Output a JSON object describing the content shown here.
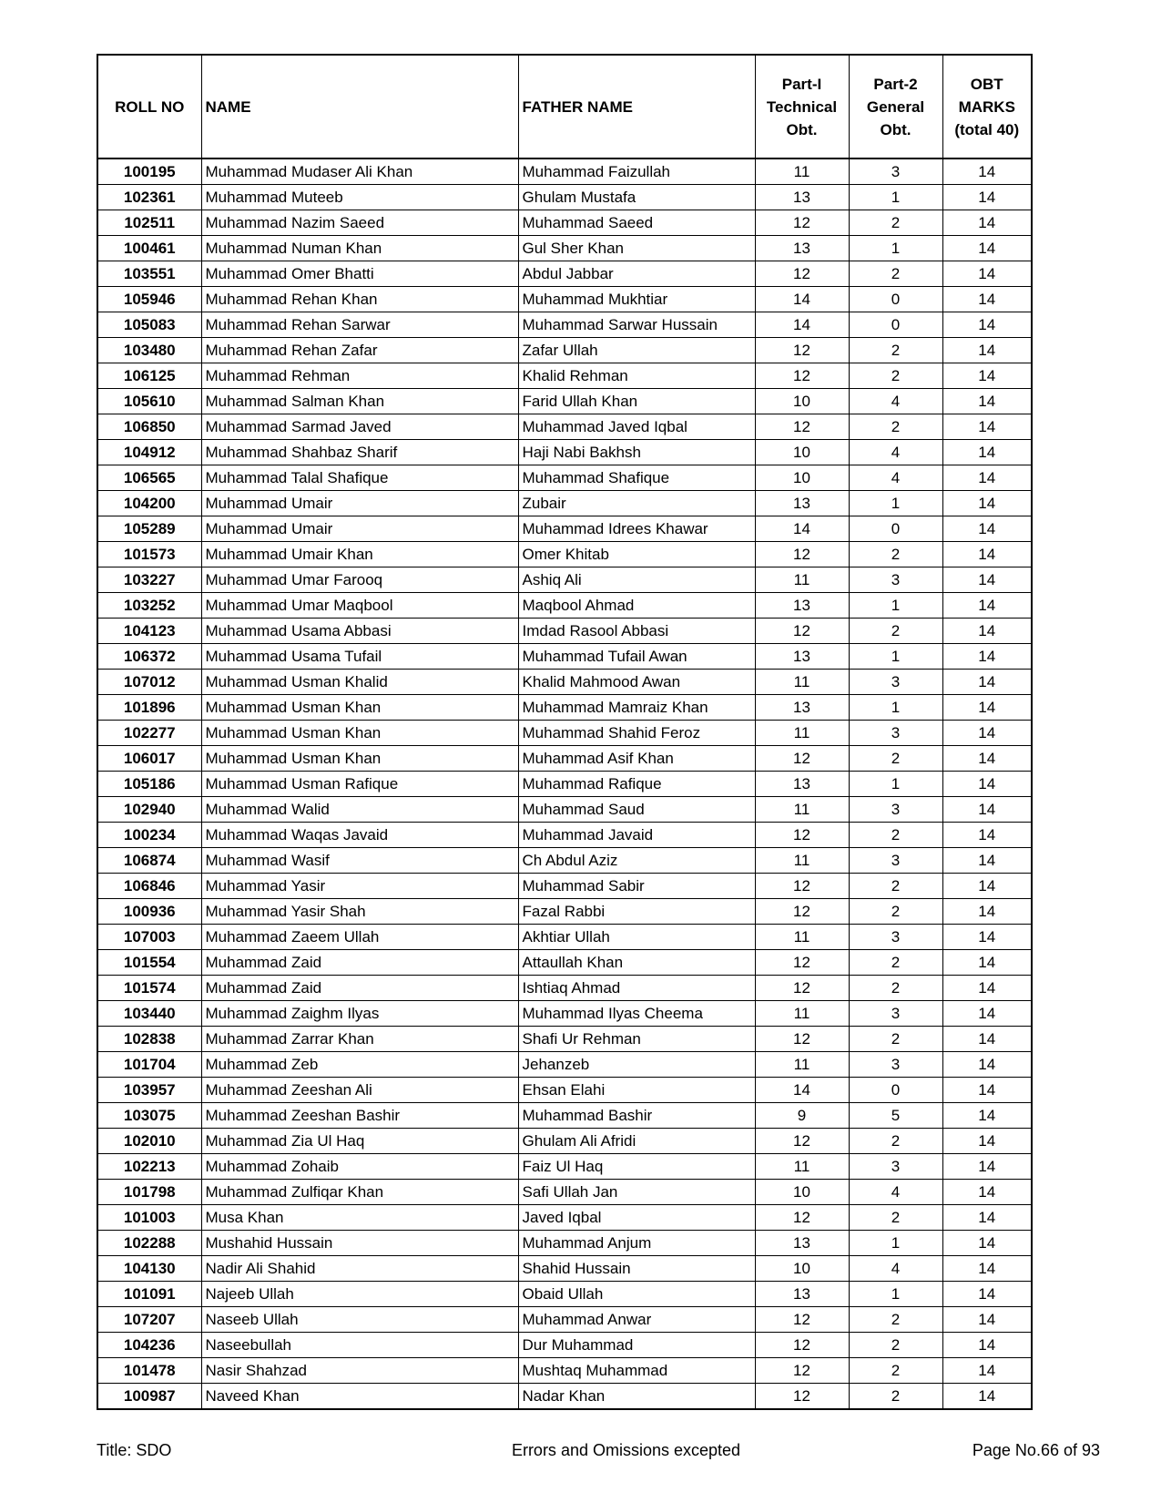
{
  "table": {
    "headers": [
      [
        "ROLL NO"
      ],
      [
        "NAME"
      ],
      [
        "FATHER NAME"
      ],
      [
        "Part-I",
        "Technical",
        "Obt."
      ],
      [
        "Part-2",
        "General",
        "Obt."
      ],
      [
        "OBT",
        "MARKS",
        "(total 40)"
      ]
    ],
    "rows": [
      [
        100195,
        "Muhammad Mudaser Ali Khan",
        "Muhammad Faizullah",
        11,
        3,
        14
      ],
      [
        102361,
        "Muhammad Muteeb",
        "Ghulam Mustafa",
        13,
        1,
        14
      ],
      [
        102511,
        "Muhammad Nazim Saeed",
        "Muhammad Saeed",
        12,
        2,
        14
      ],
      [
        100461,
        "Muhammad Numan Khan",
        "Gul Sher Khan",
        13,
        1,
        14
      ],
      [
        103551,
        "Muhammad Omer Bhatti",
        "Abdul Jabbar",
        12,
        2,
        14
      ],
      [
        105946,
        "Muhammad Rehan Khan",
        "Muhammad Mukhtiar",
        14,
        0,
        14
      ],
      [
        105083,
        "Muhammad Rehan Sarwar",
        "Muhammad Sarwar Hussain",
        14,
        0,
        14
      ],
      [
        103480,
        "Muhammad Rehan Zafar",
        "Zafar Ullah",
        12,
        2,
        14
      ],
      [
        106125,
        "Muhammad Rehman",
        "Khalid Rehman",
        12,
        2,
        14
      ],
      [
        105610,
        "Muhammad Salman Khan",
        "Farid Ullah Khan",
        10,
        4,
        14
      ],
      [
        106850,
        "Muhammad Sarmad Javed",
        "Muhammad Javed Iqbal",
        12,
        2,
        14
      ],
      [
        104912,
        "Muhammad Shahbaz Sharif",
        "Haji Nabi Bakhsh",
        10,
        4,
        14
      ],
      [
        106565,
        "Muhammad Talal Shafique",
        "Muhammad Shafique",
        10,
        4,
        14
      ],
      [
        104200,
        "Muhammad Umair",
        "Zubair",
        13,
        1,
        14
      ],
      [
        105289,
        "Muhammad Umair",
        "Muhammad Idrees Khawar",
        14,
        0,
        14
      ],
      [
        101573,
        "Muhammad Umair Khan",
        "Omer Khitab",
        12,
        2,
        14
      ],
      [
        103227,
        "Muhammad Umar Farooq",
        "Ashiq Ali",
        11,
        3,
        14
      ],
      [
        103252,
        "Muhammad Umar Maqbool",
        "Maqbool Ahmad",
        13,
        1,
        14
      ],
      [
        104123,
        "Muhammad Usama Abbasi",
        "Imdad Rasool Abbasi",
        12,
        2,
        14
      ],
      [
        106372,
        "Muhammad Usama Tufail",
        "Muhammad Tufail Awan",
        13,
        1,
        14
      ],
      [
        107012,
        "Muhammad Usman Khalid",
        "Khalid Mahmood Awan",
        11,
        3,
        14
      ],
      [
        101896,
        "Muhammad Usman Khan",
        "Muhammad Mamraiz Khan",
        13,
        1,
        14
      ],
      [
        102277,
        "Muhammad Usman Khan",
        "Muhammad Shahid Feroz",
        11,
        3,
        14
      ],
      [
        106017,
        "Muhammad Usman Khan",
        "Muhammad Asif Khan",
        12,
        2,
        14
      ],
      [
        105186,
        "Muhammad Usman Rafique",
        "Muhammad Rafique",
        13,
        1,
        14
      ],
      [
        102940,
        "Muhammad Walid",
        "Muhammad Saud",
        11,
        3,
        14
      ],
      [
        100234,
        "Muhammad Waqas Javaid",
        "Muhammad Javaid",
        12,
        2,
        14
      ],
      [
        106874,
        "Muhammad Wasif",
        "Ch Abdul Aziz",
        11,
        3,
        14
      ],
      [
        106846,
        "Muhammad Yasir",
        "Muhammad Sabir",
        12,
        2,
        14
      ],
      [
        100936,
        "Muhammad Yasir Shah",
        "Fazal Rabbi",
        12,
        2,
        14
      ],
      [
        107003,
        "Muhammad Zaeem Ullah",
        "Akhtiar Ullah",
        11,
        3,
        14
      ],
      [
        101554,
        "Muhammad Zaid",
        "Attaullah Khan",
        12,
        2,
        14
      ],
      [
        101574,
        "Muhammad Zaid",
        "Ishtiaq Ahmad",
        12,
        2,
        14
      ],
      [
        103440,
        "Muhammad Zaighm Ilyas",
        "Muhammad Ilyas Cheema",
        11,
        3,
        14
      ],
      [
        102838,
        "Muhammad Zarrar Khan",
        "Shafi Ur Rehman",
        12,
        2,
        14
      ],
      [
        101704,
        "Muhammad Zeb",
        "Jehanzeb",
        11,
        3,
        14
      ],
      [
        103957,
        "Muhammad Zeeshan Ali",
        "Ehsan Elahi",
        14,
        0,
        14
      ],
      [
        103075,
        "Muhammad Zeeshan Bashir",
        "Muhammad Bashir",
        9,
        5,
        14
      ],
      [
        102010,
        "Muhammad Zia Ul Haq",
        "Ghulam Ali Afridi",
        12,
        2,
        14
      ],
      [
        102213,
        "Muhammad Zohaib",
        "Faiz Ul Haq",
        11,
        3,
        14
      ],
      [
        101798,
        "Muhammad Zulfiqar Khan",
        "Safi Ullah Jan",
        10,
        4,
        14
      ],
      [
        101003,
        "Musa Khan",
        "Javed Iqbal",
        12,
        2,
        14
      ],
      [
        102288,
        "Mushahid Hussain",
        "Muhammad Anjum",
        13,
        1,
        14
      ],
      [
        104130,
        "Nadir Ali Shahid",
        "Shahid Hussain",
        10,
        4,
        14
      ],
      [
        101091,
        "Najeeb Ullah",
        "Obaid Ullah",
        13,
        1,
        14
      ],
      [
        107207,
        "Naseeb Ullah",
        "Muhammad Anwar",
        12,
        2,
        14
      ],
      [
        104236,
        "Naseebullah",
        "Dur Muhammad",
        12,
        2,
        14
      ],
      [
        101478,
        "Nasir Shahzad",
        "Mushtaq Muhammad",
        12,
        2,
        14
      ],
      [
        100987,
        "Naveed Khan",
        "Nadar Khan",
        12,
        2,
        14
      ]
    ]
  },
  "footer": {
    "left": "Title: SDO",
    "center": "Errors and Omissions excepted",
    "right": "Page No.66 of 93"
  }
}
